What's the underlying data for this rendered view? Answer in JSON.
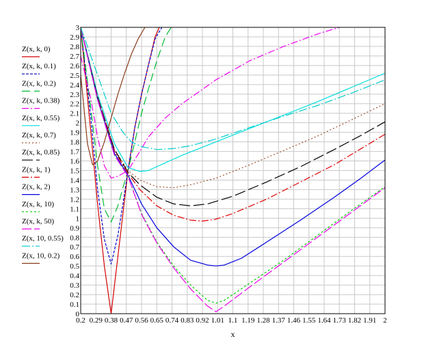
{
  "chart_data": {
    "type": "line",
    "xlabel": "x",
    "ylabel": "",
    "xlim": [
      0.2,
      2
    ],
    "ylim": [
      0,
      3
    ],
    "grid": true,
    "legend_position": "left",
    "xtick_labels": [
      "0.2",
      "0.29",
      "0.38",
      "0.47",
      "0.56",
      "0.65",
      "0.74",
      "0.83",
      "0.92",
      "1.01",
      "1.1",
      "1.19",
      "1.28",
      "1.37",
      "1.46",
      "1.55",
      "1.64",
      "1.73",
      "1.82",
      "1.91",
      "2"
    ],
    "xticks": [
      0.2,
      0.29,
      0.38,
      0.47,
      0.56,
      0.65,
      0.74,
      0.83,
      0.92,
      1.01,
      1.1,
      1.19,
      1.28,
      1.37,
      1.46,
      1.55,
      1.64,
      1.73,
      1.82,
      1.91,
      2
    ],
    "ytick_labels": [
      "0",
      "0.1",
      "0.2",
      "0.3",
      "0.4",
      "0.5",
      "0.6",
      "0.7",
      "0.8",
      "0.9",
      "1",
      "1.1",
      "1.2",
      "1.3",
      "1.4",
      "1.5",
      "1.6",
      "1.7",
      "1.8",
      "1.9",
      "2",
      "2.1",
      "2.2",
      "2.3",
      "2.4",
      "2.5",
      "2.6",
      "2.7",
      "2.8",
      "2.9",
      "3"
    ],
    "yticks": [
      0,
      0.1,
      0.2,
      0.3,
      0.4,
      0.5,
      0.6,
      0.7,
      0.8,
      0.9,
      1,
      1.1,
      1.2,
      1.3,
      1.4,
      1.5,
      1.6,
      1.7,
      1.8,
      1.9,
      2,
      2.1,
      2.2,
      2.3,
      2.4,
      2.5,
      2.6,
      2.7,
      2.8,
      2.9,
      3
    ],
    "series": [
      {
        "name": "Z(x, k, 0)",
        "color": "#d40000",
        "dash": "solid",
        "x": [
          0.2,
          0.26,
          0.3,
          0.34,
          0.38,
          0.42,
          0.45,
          0.48,
          0.52,
          0.56,
          0.6,
          0.64,
          0.665
        ],
        "y": [
          3.0,
          1.9,
          1.15,
          0.5,
          0.0,
          0.6,
          1.05,
          1.5,
          1.95,
          2.3,
          2.6,
          2.9,
          3.0
        ]
      },
      {
        "name": "Z(x, k, 0.1)",
        "color": "#0000cc",
        "dash": "4,2",
        "x": [
          0.2,
          0.26,
          0.3,
          0.34,
          0.38,
          0.42,
          0.45,
          0.48,
          0.52,
          0.56,
          0.6,
          0.64,
          0.68
        ],
        "y": [
          3.0,
          2.05,
          1.3,
          0.78,
          0.52,
          0.82,
          1.15,
          1.5,
          1.95,
          2.3,
          2.6,
          2.88,
          3.0
        ]
      },
      {
        "name": "Z(x, k, 0.2)",
        "color": "#00bb33",
        "dash": "12,6",
        "x": [
          0.2,
          0.26,
          0.3,
          0.34,
          0.38,
          0.42,
          0.45,
          0.48,
          0.52,
          0.56,
          0.6,
          0.65,
          0.7,
          0.735
        ],
        "y": [
          3.0,
          2.15,
          1.55,
          1.1,
          0.96,
          1.13,
          1.32,
          1.5,
          1.8,
          2.1,
          2.35,
          2.65,
          2.9,
          3.0
        ]
      },
      {
        "name": "Z(x, k, 0.38)",
        "color": "#ee00ee",
        "dash": "10,3,2,3",
        "x": [
          0.2,
          0.26,
          0.3,
          0.34,
          0.38,
          0.42,
          0.48,
          0.55,
          0.6,
          0.7,
          0.8,
          1.0,
          1.2,
          1.4,
          1.6,
          1.73
        ],
        "y": [
          2.7,
          2.25,
          1.85,
          1.55,
          1.42,
          1.44,
          1.5,
          1.7,
          1.85,
          2.05,
          2.2,
          2.45,
          2.65,
          2.8,
          2.93,
          3.0
        ]
      },
      {
        "name": "Z(x, k, 0.55)",
        "color": "#00dddd",
        "dash": "solid",
        "x": [
          0.2,
          0.3,
          0.4,
          0.48,
          0.55,
          0.6,
          0.7,
          0.8,
          1.0,
          1.2,
          1.4,
          1.6,
          1.8,
          2.0
        ],
        "y": [
          3.0,
          2.3,
          1.78,
          1.53,
          1.49,
          1.5,
          1.58,
          1.66,
          1.8,
          1.94,
          2.08,
          2.22,
          2.37,
          2.52
        ]
      },
      {
        "name": "Z(x, k, 0.7)",
        "color": "#a0522d",
        "dash": "2,3",
        "x": [
          0.2,
          0.3,
          0.4,
          0.48,
          0.55,
          0.65,
          0.75,
          0.85,
          1.0,
          1.2,
          1.4,
          1.6,
          1.8,
          2.0
        ],
        "y": [
          3.0,
          2.28,
          1.72,
          1.5,
          1.4,
          1.33,
          1.32,
          1.35,
          1.42,
          1.56,
          1.71,
          1.86,
          2.03,
          2.2
        ]
      },
      {
        "name": "Z(x, k, 0.85)",
        "color": "#000000",
        "dash": "16,5",
        "x": [
          0.2,
          0.3,
          0.4,
          0.48,
          0.55,
          0.65,
          0.75,
          0.85,
          0.95,
          1.1,
          1.3,
          1.5,
          1.7,
          1.85,
          2.0
        ],
        "y": [
          3.0,
          2.27,
          1.72,
          1.48,
          1.35,
          1.22,
          1.15,
          1.13,
          1.15,
          1.23,
          1.38,
          1.54,
          1.72,
          1.86,
          2.01
        ]
      },
      {
        "name": "Z(x, k, 1)",
        "color": "#e00000",
        "dash": "10,3,2,3",
        "x": [
          0.2,
          0.3,
          0.4,
          0.48,
          0.55,
          0.65,
          0.75,
          0.85,
          0.92,
          1.0,
          1.1,
          1.3,
          1.5,
          1.7,
          1.85,
          2.0
        ],
        "y": [
          3.0,
          2.26,
          1.7,
          1.47,
          1.3,
          1.13,
          1.03,
          0.98,
          0.97,
          0.99,
          1.05,
          1.2,
          1.38,
          1.56,
          1.72,
          1.88
        ]
      },
      {
        "name": "Z(x, k, 2)",
        "color": "#0000dd",
        "dash": "solid",
        "x": [
          0.2,
          0.3,
          0.4,
          0.48,
          0.56,
          0.65,
          0.75,
          0.85,
          0.95,
          1.0,
          1.05,
          1.15,
          1.3,
          1.5,
          1.7,
          1.85,
          2.0
        ],
        "y": [
          3.0,
          2.25,
          1.68,
          1.45,
          1.15,
          0.9,
          0.7,
          0.56,
          0.51,
          0.5,
          0.51,
          0.58,
          0.75,
          0.98,
          1.22,
          1.41,
          1.61
        ]
      },
      {
        "name": "Z(x, k, 10)",
        "color": "#00cc00",
        "dash": "3,3",
        "x": [
          0.2,
          0.3,
          0.4,
          0.48,
          0.56,
          0.65,
          0.75,
          0.85,
          0.95,
          1.0,
          1.05,
          1.2,
          1.4,
          1.6,
          1.8,
          2.0
        ],
        "y": [
          3.0,
          2.24,
          1.66,
          1.44,
          1.05,
          0.75,
          0.5,
          0.3,
          0.14,
          0.11,
          0.14,
          0.32,
          0.56,
          0.82,
          1.08,
          1.33
        ]
      },
      {
        "name": "Z(x, k, 50)",
        "color": "#ee00ee",
        "dash": "14,4",
        "x": [
          0.2,
          0.3,
          0.4,
          0.48,
          0.56,
          0.65,
          0.75,
          0.85,
          0.95,
          1.0,
          1.05,
          1.2,
          1.4,
          1.6,
          1.8,
          2.0
        ],
        "y": [
          3.0,
          2.24,
          1.66,
          1.44,
          1.04,
          0.74,
          0.48,
          0.26,
          0.08,
          0.02,
          0.08,
          0.28,
          0.54,
          0.8,
          1.06,
          1.32
        ]
      },
      {
        "name": "Z(x, 10, 0.55)",
        "color": "#00cccc",
        "dash": "12,3,2,3",
        "x": [
          0.2,
          0.3,
          0.38,
          0.45,
          0.5,
          0.56,
          0.65,
          0.75,
          0.85,
          1.0,
          1.2,
          1.4,
          1.6,
          1.8,
          2.0
        ],
        "y": [
          3.0,
          2.5,
          2.1,
          1.9,
          1.8,
          1.75,
          1.72,
          1.73,
          1.76,
          1.83,
          1.95,
          2.07,
          2.18,
          2.31,
          2.45
        ]
      },
      {
        "name": "Z(x, 10, 0.2)",
        "color": "#8b3a1a",
        "dash": "solid",
        "x": [
          0.2,
          0.24,
          0.27,
          0.3,
          0.34,
          0.38,
          0.42,
          0.46,
          0.5,
          0.54,
          0.58
        ],
        "y": [
          2.5,
          1.78,
          1.56,
          1.6,
          1.8,
          2.05,
          2.3,
          2.52,
          2.72,
          2.88,
          3.0
        ]
      }
    ]
  }
}
